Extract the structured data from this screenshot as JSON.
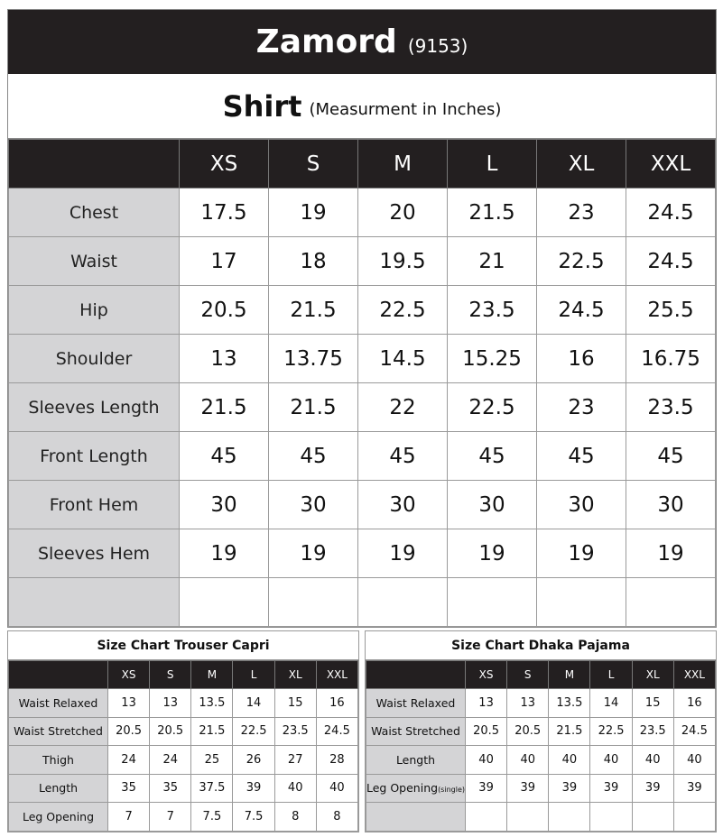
{
  "brand": {
    "name": "Zamord",
    "code": "(9153)"
  },
  "shirt": {
    "title": "Shirt",
    "unit": "(Measurment in Inches)",
    "sizes": [
      "XS",
      "S",
      "M",
      "L",
      "XL",
      "XXL"
    ],
    "rows": [
      {
        "label": "Chest",
        "values": [
          "17.5",
          "19",
          "20",
          "21.5",
          "23",
          "24.5"
        ]
      },
      {
        "label": "Waist",
        "values": [
          "17",
          "18",
          "19.5",
          "21",
          "22.5",
          "24.5"
        ]
      },
      {
        "label": "Hip",
        "values": [
          "20.5",
          "21.5",
          "22.5",
          "23.5",
          "24.5",
          "25.5"
        ]
      },
      {
        "label": "Shoulder",
        "values": [
          "13",
          "13.75",
          "14.5",
          "15.25",
          "16",
          "16.75"
        ]
      },
      {
        "label": "Sleeves Length",
        "values": [
          "21.5",
          "21.5",
          "22",
          "22.5",
          "23",
          "23.5"
        ]
      },
      {
        "label": "Front Length",
        "values": [
          "45",
          "45",
          "45",
          "45",
          "45",
          "45"
        ]
      },
      {
        "label": "Front Hem",
        "values": [
          "30",
          "30",
          "30",
          "30",
          "30",
          "30"
        ]
      },
      {
        "label": "Sleeves Hem",
        "values": [
          "19",
          "19",
          "19",
          "19",
          "19",
          "19"
        ]
      },
      {
        "label": "",
        "values": [
          "",
          "",
          "",
          "",
          "",
          ""
        ]
      }
    ]
  },
  "capri": {
    "title": "Size Chart Trouser Capri",
    "sizes": [
      "XS",
      "S",
      "M",
      "L",
      "XL",
      "XXL"
    ],
    "rows": [
      {
        "label": "Waist Relaxed",
        "values": [
          "13",
          "13",
          "13.5",
          "14",
          "15",
          "16"
        ]
      },
      {
        "label": "Waist Stretched",
        "values": [
          "20.5",
          "20.5",
          "21.5",
          "22.5",
          "23.5",
          "24.5"
        ]
      },
      {
        "label": "Thigh",
        "values": [
          "24",
          "24",
          "25",
          "26",
          "27",
          "28"
        ]
      },
      {
        "label": "Length",
        "values": [
          "35",
          "35",
          "37.5",
          "39",
          "40",
          "40"
        ]
      },
      {
        "label": "Leg Opening",
        "values": [
          "7",
          "7",
          "7.5",
          "7.5",
          "8",
          "8"
        ]
      }
    ]
  },
  "pajama": {
    "title": "Size Chart Dhaka Pajama",
    "sizes": [
      "XS",
      "S",
      "M",
      "L",
      "XL",
      "XXL"
    ],
    "rows": [
      {
        "label": "Waist Relaxed",
        "values": [
          "13",
          "13",
          "13.5",
          "14",
          "15",
          "16"
        ]
      },
      {
        "label": "Waist Stretched",
        "values": [
          "20.5",
          "20.5",
          "21.5",
          "22.5",
          "23.5",
          "24.5"
        ]
      },
      {
        "label": "Length",
        "values": [
          "40",
          "40",
          "40",
          "40",
          "40",
          "40"
        ]
      },
      {
        "label": "Leg Opening",
        "note": "(single)",
        "values": [
          "39",
          "39",
          "39",
          "39",
          "39",
          "39"
        ]
      },
      {
        "label": "",
        "values": [
          "",
          "",
          "",
          "",
          "",
          ""
        ]
      }
    ]
  }
}
